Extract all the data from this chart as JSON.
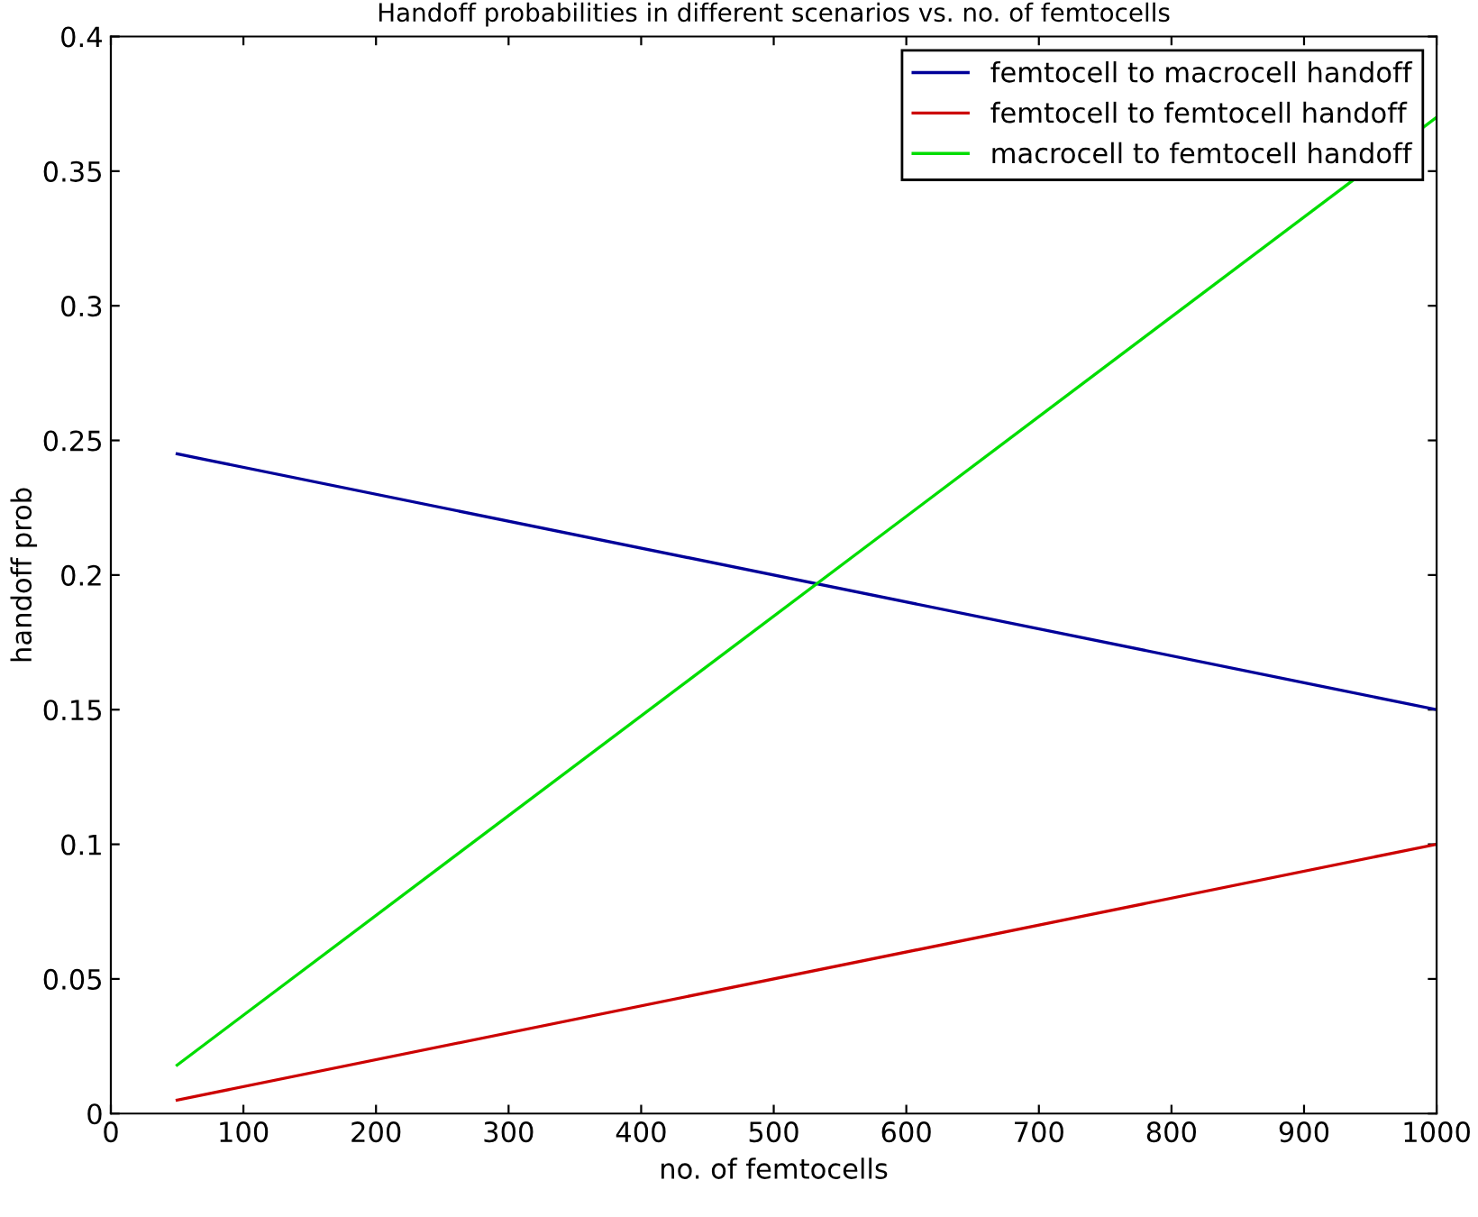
{
  "chart_data": {
    "type": "line",
    "title": "Handoff probabilities in different scenarios vs. no. of femtocells",
    "xlabel": "no. of femtocells",
    "ylabel": "handoff prob",
    "x": [
      50,
      1000
    ],
    "series": [
      {
        "name": "femtocell to macrocell handoff",
        "color": "#000099",
        "values": [
          0.245,
          0.15
        ]
      },
      {
        "name": "femtocell to femtocell handoff",
        "color": "#cc0000",
        "values": [
          0.005,
          0.1
        ]
      },
      {
        "name": "macrocell to femtocell handoff",
        "color": "#00dd00",
        "values": [
          0.018,
          0.37
        ]
      }
    ],
    "xlim": [
      0,
      1000
    ],
    "xticks": [
      0,
      100,
      200,
      300,
      400,
      500,
      600,
      700,
      800,
      900,
      1000
    ],
    "ylim": [
      0,
      0.4
    ],
    "yticks": [
      0,
      0.05,
      0.1,
      0.15,
      0.2,
      0.25,
      0.3,
      0.35,
      0.4
    ],
    "grid": false,
    "legend": "top right"
  }
}
